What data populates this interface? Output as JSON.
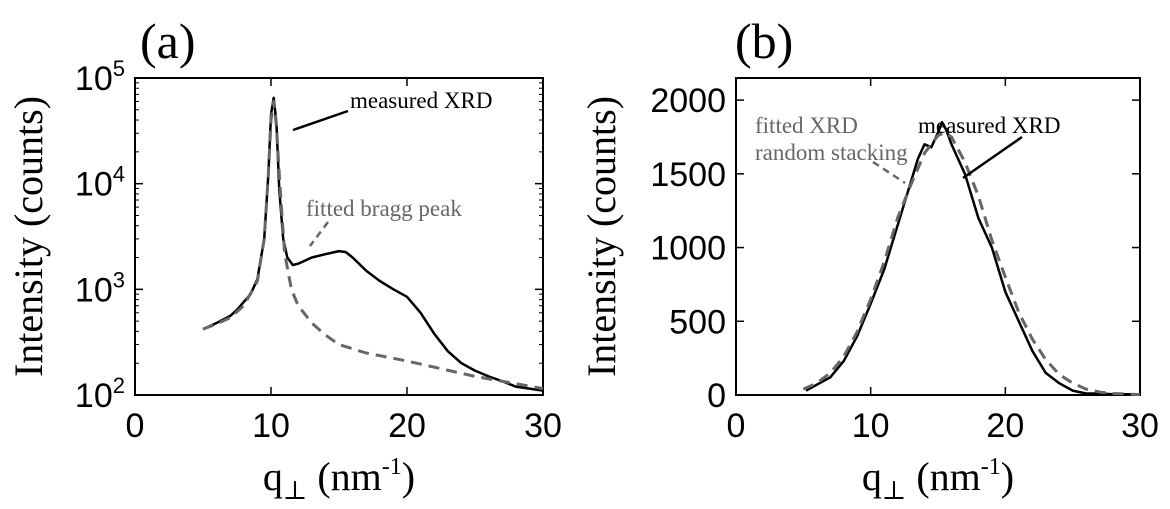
{
  "chart_data": [
    {
      "panel_label": "(a)",
      "type": "line",
      "xlabel_main": "q",
      "xlabel_sub": "⊥",
      "xlabel_unit": "(nm",
      "xlabel_exp": "-1",
      "xlabel_close": ")",
      "ylabel": "Intensity (counts)",
      "xlim": [
        0,
        30
      ],
      "ylim": [
        100,
        100000
      ],
      "yscale": "log",
      "xticks": [
        0,
        10,
        20,
        30
      ],
      "xtick_labels": [
        "0",
        "10",
        "20",
        "30"
      ],
      "yticks": [
        100,
        1000,
        10000,
        100000
      ],
      "ytick_base": [
        "10",
        "10",
        "10",
        "10"
      ],
      "ytick_exp": [
        "2",
        "3",
        "4",
        "5"
      ],
      "grid": false,
      "series": [
        {
          "name": "measured XRD",
          "color": "#000000",
          "style": "solid",
          "x": [
            5,
            6,
            7,
            7.5,
            8,
            8.5,
            9,
            9.5,
            9.8,
            10,
            10.2,
            10.4,
            10.6,
            10.9,
            11.2,
            11.6,
            12,
            13,
            14,
            15,
            15.5,
            16,
            17,
            18,
            19,
            20,
            21,
            22,
            23,
            24,
            25,
            26,
            27,
            28,
            29,
            30
          ],
          "y": [
            420,
            480,
            560,
            640,
            760,
            900,
            1250,
            3000,
            12000,
            45000,
            65000,
            38000,
            9000,
            3000,
            2000,
            1700,
            1750,
            2000,
            2150,
            2300,
            2250,
            2000,
            1500,
            1200,
            1000,
            850,
            600,
            380,
            260,
            200,
            170,
            150,
            135,
            120,
            115,
            110
          ]
        },
        {
          "name": "fitted bragg peak",
          "color": "#666666",
          "style": "dashed",
          "x": [
            5,
            6,
            7,
            8,
            9,
            9.5,
            9.8,
            10,
            10.2,
            10.4,
            10.7,
            11,
            11.5,
            12,
            13,
            14,
            15,
            17,
            20,
            25,
            30
          ],
          "y": [
            420,
            470,
            540,
            700,
            1200,
            3000,
            12000,
            40000,
            60000,
            35000,
            8000,
            2200,
            1000,
            700,
            480,
            370,
            300,
            250,
            210,
            150,
            115
          ]
        }
      ],
      "annotations": [
        "measured XRD",
        "fitted bragg peak"
      ]
    },
    {
      "panel_label": "(b)",
      "type": "line",
      "xlabel_main": "q",
      "xlabel_sub": "⊥",
      "xlabel_unit": "(nm",
      "xlabel_exp": "-1",
      "xlabel_close": ")",
      "ylabel": "Intensity (counts)",
      "xlim": [
        0,
        30
      ],
      "ylim": [
        0,
        2150
      ],
      "yscale": "linear",
      "xticks": [
        0,
        10,
        20,
        30
      ],
      "xtick_labels": [
        "0",
        "10",
        "20",
        "30"
      ],
      "yticks": [
        0,
        500,
        1000,
        1500,
        2000
      ],
      "ytick_labels": [
        "0",
        "500",
        "1000",
        "1500",
        "2000"
      ],
      "grid": false,
      "series": [
        {
          "name": "measured XRD",
          "color": "#000000",
          "style": "solid",
          "x": [
            5.2,
            6,
            7,
            8,
            9,
            10,
            11,
            12,
            13,
            13.5,
            14,
            14.5,
            15,
            15.3,
            15.6,
            16,
            16.5,
            17,
            18,
            19,
            20,
            21,
            22,
            23,
            24,
            25,
            26,
            27,
            28,
            29,
            30
          ],
          "y": [
            30,
            70,
            120,
            230,
            400,
            620,
            850,
            1150,
            1450,
            1600,
            1700,
            1680,
            1780,
            1850,
            1800,
            1700,
            1600,
            1500,
            1200,
            1000,
            700,
            500,
            300,
            150,
            80,
            30,
            10,
            10,
            5,
            5,
            5
          ]
        },
        {
          "name": "fitted XRD random stacking",
          "color": "#666666",
          "style": "dashed",
          "x": [
            5,
            6,
            7,
            8,
            9,
            10,
            11,
            12,
            13,
            14,
            15,
            15.5,
            16,
            17,
            18,
            19,
            20,
            21,
            22,
            23,
            24,
            25,
            26,
            27,
            28,
            30
          ],
          "y": [
            40,
            80,
            150,
            260,
            430,
            650,
            900,
            1200,
            1430,
            1640,
            1760,
            1780,
            1750,
            1580,
            1350,
            1050,
            800,
            560,
            380,
            240,
            140,
            80,
            40,
            20,
            10,
            3
          ]
        }
      ],
      "annotations": [
        "fitted XRD",
        "random stacking",
        "measured XRD"
      ]
    }
  ]
}
